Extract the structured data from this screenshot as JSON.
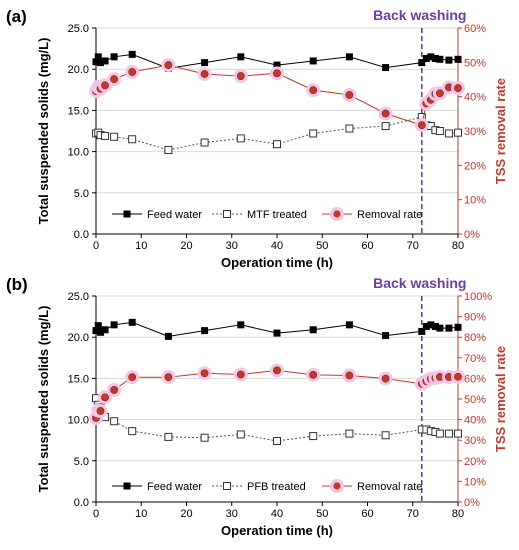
{
  "colors": {
    "feed": "#000000",
    "treated": "#555555",
    "removal": "#c0392b",
    "removal_halo": "#f2c6e6",
    "backwash": "#3b2f9e",
    "annotation": "#6a3fa0",
    "grid": "#d9d9d9"
  },
  "chart_data": [
    {
      "type": "line",
      "panel_label": "(a)",
      "annotation": "Back washing",
      "backwash_x": 72,
      "xlabel": "Operation time (h)",
      "ylabel": "Total suspended solids (mg/L)",
      "y2label": "TSS removal rate",
      "xlim": [
        0,
        80
      ],
      "xticks": [
        "0",
        "10",
        "20",
        "30",
        "40",
        "50",
        "60",
        "70",
        "80"
      ],
      "ylim": [
        0,
        25
      ],
      "yticks": [
        "0.0",
        "5.0",
        "10.0",
        "15.0",
        "20.0",
        "25.0"
      ],
      "y2lim": [
        0,
        60
      ],
      "y2ticks": [
        "0%",
        "10%",
        "20%",
        "30%",
        "40%",
        "50%",
        "60%"
      ],
      "grid": "horizontal",
      "legend_position": "bottom",
      "series": [
        {
          "name": "Feed water",
          "axis": "left",
          "marker": "square-filled",
          "x": [
            0,
            0.5,
            1,
            2,
            4,
            8,
            16,
            24,
            32,
            40,
            48,
            56,
            64,
            72,
            73,
            74,
            75,
            76,
            78,
            80
          ],
          "y": [
            20.9,
            21.5,
            20.8,
            21.0,
            21.5,
            21.8,
            20.1,
            20.8,
            21.5,
            20.5,
            21.0,
            21.5,
            20.2,
            20.8,
            21.3,
            21.5,
            21.3,
            21.2,
            21.1,
            21.2
          ]
        },
        {
          "name": "MTF treated",
          "axis": "left",
          "marker": "square-open",
          "x": [
            0,
            0.5,
            1,
            2,
            4,
            8,
            16,
            24,
            32,
            40,
            48,
            56,
            64,
            72,
            73,
            74,
            75,
            76,
            78,
            80
          ],
          "y": [
            12.2,
            12.3,
            12.0,
            11.9,
            11.8,
            11.5,
            10.2,
            11.1,
            11.6,
            10.9,
            12.2,
            12.8,
            13.1,
            14.2,
            13.2,
            13.1,
            12.6,
            12.5,
            12.2,
            12.3
          ]
        },
        {
          "name": "Removal rate",
          "axis": "right",
          "marker": "circle-filled",
          "x": [
            0,
            0.5,
            1,
            2,
            4,
            8,
            16,
            24,
            32,
            40,
            48,
            56,
            64,
            72,
            73,
            74,
            75,
            76,
            78,
            80
          ],
          "y": [
            41.6,
            42.8,
            42.3,
            43.3,
            45.1,
            47.2,
            49.2,
            46.6,
            46.0,
            46.8,
            41.9,
            40.5,
            35.1,
            31.7,
            38.0,
            39.1,
            40.8,
            41.0,
            42.7,
            42.5
          ]
        }
      ]
    },
    {
      "type": "line",
      "panel_label": "(b)",
      "annotation": "Back washing",
      "backwash_x": 72,
      "xlabel": "Operation time (h)",
      "ylabel": "Total suspended solids (mg/L)",
      "y2label": "TSS removal rate",
      "xlim": [
        0,
        80
      ],
      "xticks": [
        "0",
        "10",
        "20",
        "30",
        "40",
        "50",
        "60",
        "70",
        "80"
      ],
      "ylim": [
        0,
        25
      ],
      "yticks": [
        "0.0",
        "5.0",
        "10.0",
        "15.0",
        "20.0",
        "25.0"
      ],
      "y2lim": [
        0,
        100
      ],
      "y2ticks": [
        "0%",
        "10%",
        "20%",
        "30%",
        "40%",
        "50%",
        "60%",
        "70%",
        "80%",
        "90%",
        "100%"
      ],
      "grid": "horizontal",
      "legend_position": "bottom",
      "series": [
        {
          "name": "Feed water",
          "axis": "left",
          "marker": "square-filled",
          "x": [
            0,
            0.5,
            1,
            2,
            4,
            8,
            16,
            24,
            32,
            40,
            48,
            56,
            64,
            72,
            73,
            74,
            75,
            76,
            78,
            80
          ],
          "y": [
            20.8,
            21.4,
            20.6,
            20.9,
            21.5,
            21.8,
            20.1,
            20.8,
            21.5,
            20.5,
            20.9,
            21.5,
            20.2,
            20.7,
            21.3,
            21.5,
            21.3,
            21.1,
            21.1,
            21.2
          ]
        },
        {
          "name": "PFB treated",
          "axis": "left",
          "marker": "square-open",
          "x": [
            0,
            0.5,
            1,
            2,
            4,
            8,
            16,
            24,
            32,
            40,
            48,
            56,
            64,
            72,
            73,
            74,
            75,
            76,
            78,
            80
          ],
          "y": [
            12.6,
            11.8,
            11.5,
            10.3,
            9.8,
            8.6,
            7.9,
            7.8,
            8.2,
            7.4,
            8.0,
            8.3,
            8.1,
            8.8,
            8.8,
            8.6,
            8.5,
            8.3,
            8.3,
            8.3
          ]
        },
        {
          "name": "Removal rate",
          "axis": "right",
          "marker": "circle-filled",
          "x": [
            0,
            0.5,
            1,
            2,
            4,
            8,
            16,
            24,
            32,
            40,
            48,
            56,
            64,
            72,
            73,
            74,
            75,
            76,
            78,
            80
          ],
          "y": [
            40.8,
            44.4,
            44.2,
            50.8,
            54.4,
            60.6,
            60.6,
            62.5,
            61.9,
            63.9,
            61.7,
            61.4,
            59.9,
            57.4,
            58.6,
            59.8,
            60.2,
            60.7,
            60.7,
            60.8
          ]
        }
      ]
    }
  ]
}
